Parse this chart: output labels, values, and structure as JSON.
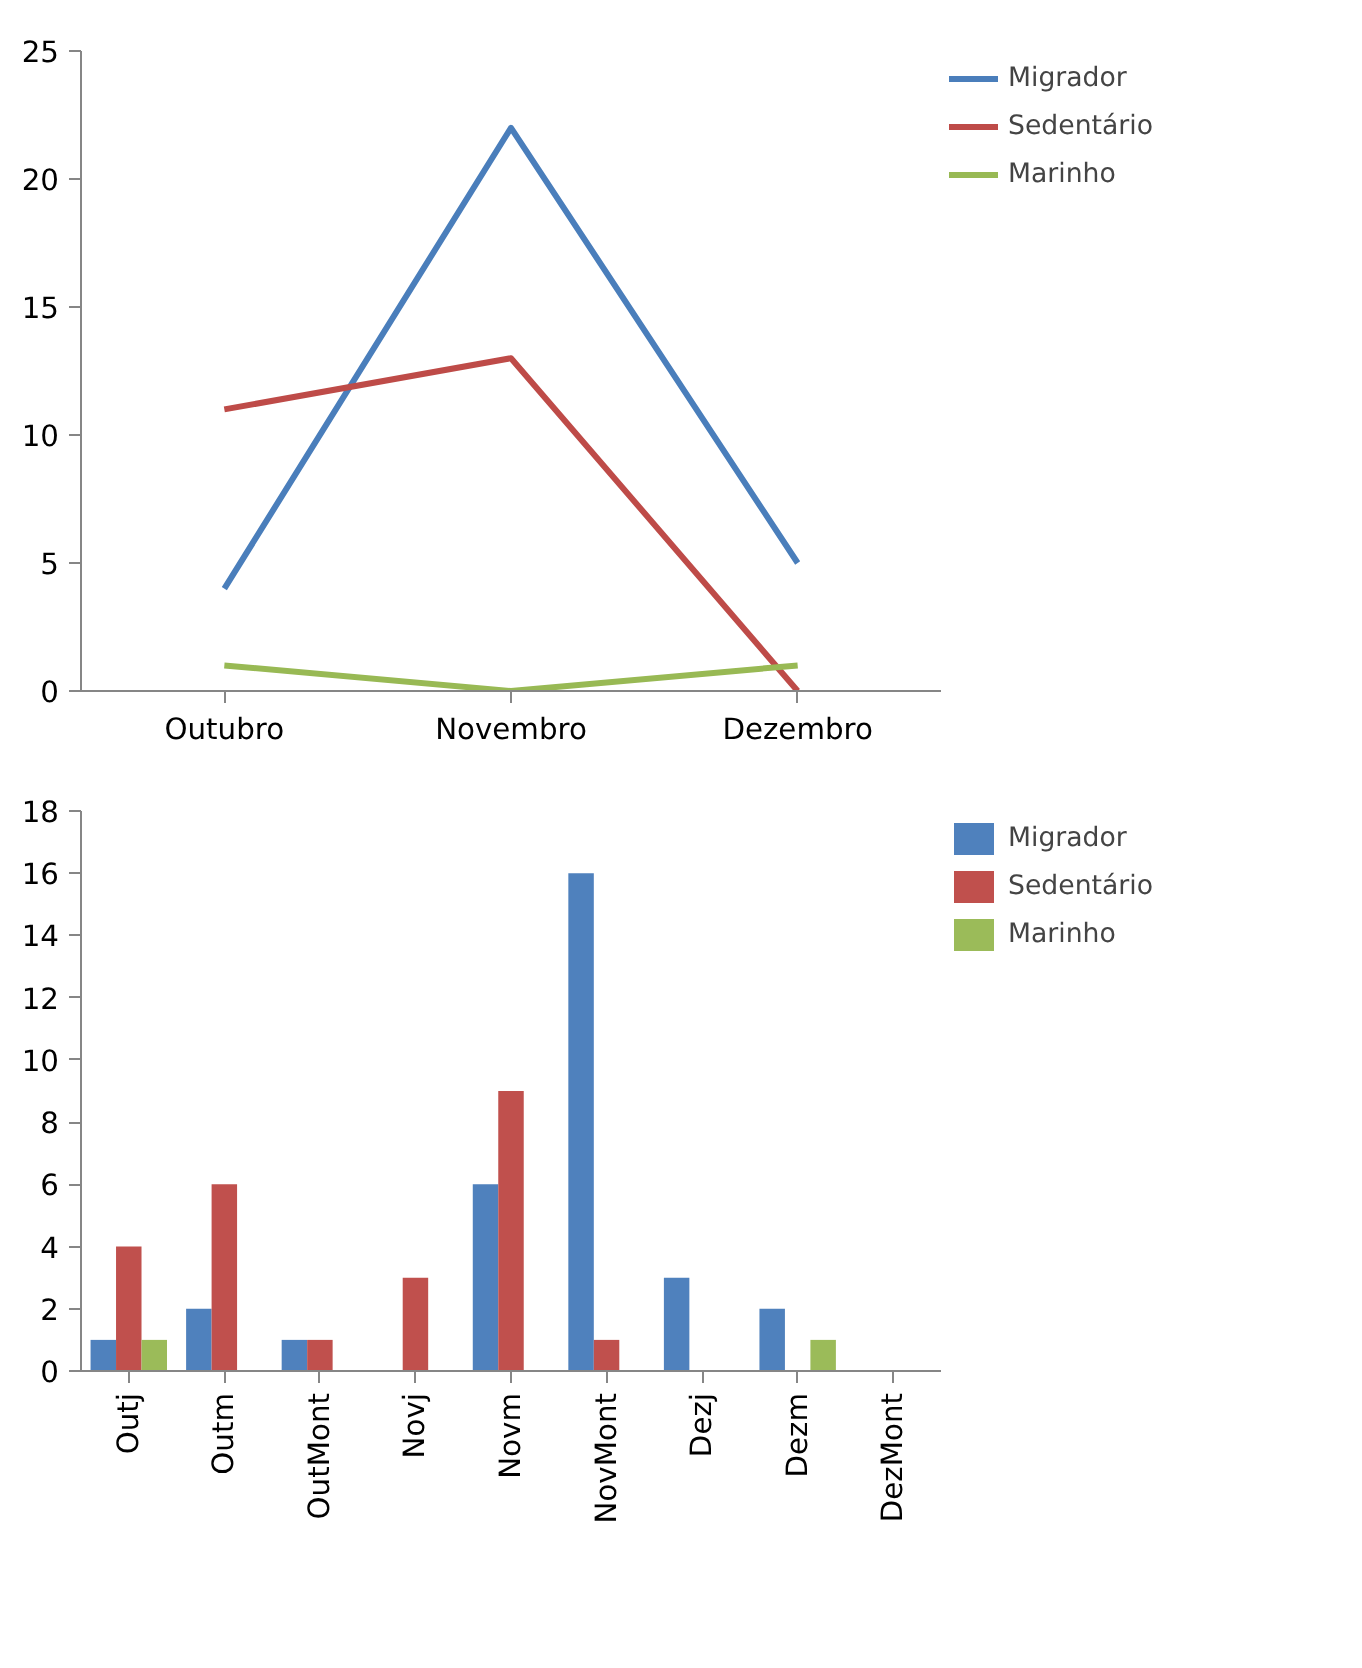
{
  "chart_data": [
    {
      "type": "line",
      "categories": [
        "Outubro",
        "Novembro",
        "Dezembro"
      ],
      "ylim": [
        0,
        25
      ],
      "yticks": [
        0,
        5,
        10,
        15,
        20,
        25
      ],
      "legend": "right",
      "series": [
        {
          "name": "Migrador",
          "color": "#4a7ebb",
          "values": [
            4,
            22,
            5
          ]
        },
        {
          "name": "Sedentário",
          "color": "#be4b48",
          "values": [
            11,
            13,
            0
          ]
        },
        {
          "name": "Marinho",
          "color": "#98b954",
          "values": [
            1,
            0,
            1
          ]
        }
      ]
    },
    {
      "type": "bar",
      "categories": [
        "Outj",
        "Outm",
        "OutMont",
        "Novj",
        "Novm",
        "NovMont",
        "Dezj",
        "Dezm",
        "DezMont"
      ],
      "ylim": [
        0,
        18
      ],
      "yticks": [
        0,
        2,
        4,
        6,
        8,
        10,
        12,
        14,
        16,
        18
      ],
      "legend": "right",
      "series": [
        {
          "name": "Migrador",
          "color": "#4f81bd",
          "values": [
            1,
            2,
            1,
            0,
            6,
            16,
            3,
            2,
            0
          ]
        },
        {
          "name": "Sedentário",
          "color": "#c0504d",
          "values": [
            4,
            6,
            1,
            3,
            9,
            1,
            0,
            0,
            0
          ]
        },
        {
          "name": "Marinho",
          "color": "#9bbb59",
          "values": [
            1,
            0,
            0,
            0,
            0,
            0,
            0,
            1,
            0
          ]
        }
      ]
    }
  ]
}
